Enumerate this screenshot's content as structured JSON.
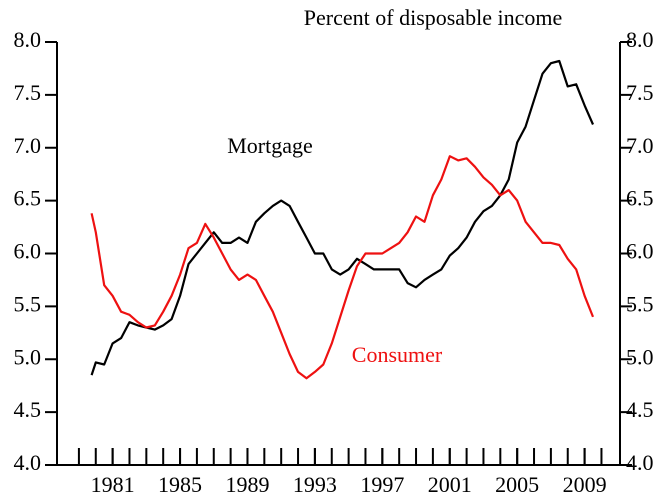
{
  "chart_data": {
    "type": "line",
    "subtitle": "Percent of disposable income",
    "x": [
      1979.75,
      1980,
      1980.5,
      1981,
      1981.5,
      1982,
      1982.5,
      1983,
      1983.5,
      1984,
      1984.5,
      1985,
      1985.5,
      1986,
      1986.5,
      1987,
      1987.5,
      1988,
      1988.5,
      1989,
      1989.5,
      1990,
      1990.5,
      1991,
      1991.5,
      1992,
      1992.5,
      1993,
      1993.5,
      1994,
      1994.5,
      1995,
      1995.5,
      1996,
      1996.5,
      1997,
      1997.5,
      1998,
      1998.5,
      1999,
      1999.5,
      2000,
      2000.5,
      2001,
      2001.5,
      2002,
      2002.5,
      2003,
      2003.5,
      2004,
      2004.5,
      2005,
      2005.5,
      2006,
      2006.5,
      2007,
      2007.5,
      2008,
      2008.5,
      2009,
      2009.5
    ],
    "series": [
      {
        "name": "Mortgage",
        "color": "#000000",
        "values": [
          4.85,
          4.97,
          4.95,
          5.15,
          5.2,
          5.35,
          5.32,
          5.3,
          5.28,
          5.32,
          5.38,
          5.6,
          5.9,
          6.0,
          6.1,
          6.2,
          6.1,
          6.1,
          6.15,
          6.1,
          6.3,
          6.38,
          6.45,
          6.5,
          6.45,
          6.3,
          6.15,
          6.0,
          6.0,
          5.85,
          5.8,
          5.85,
          5.95,
          5.9,
          5.85,
          5.85,
          5.85,
          5.85,
          5.72,
          5.68,
          5.75,
          5.8,
          5.85,
          5.98,
          6.05,
          6.15,
          6.3,
          6.4,
          6.45,
          6.55,
          6.7,
          7.05,
          7.2,
          7.45,
          7.7,
          7.8,
          7.82,
          7.58,
          7.6,
          7.4,
          7.22
        ]
      },
      {
        "name": "Consumer",
        "color": "#ee1111",
        "values": [
          6.38,
          6.2,
          5.7,
          5.6,
          5.45,
          5.42,
          5.35,
          5.3,
          5.32,
          5.45,
          5.6,
          5.8,
          6.05,
          6.1,
          6.28,
          6.15,
          6.0,
          5.85,
          5.75,
          5.8,
          5.75,
          5.6,
          5.45,
          5.25,
          5.05,
          4.88,
          4.82,
          4.88,
          4.95,
          5.15,
          5.4,
          5.65,
          5.88,
          6.0,
          6.0,
          6.0,
          6.05,
          6.1,
          6.2,
          6.35,
          6.3,
          6.55,
          6.7,
          6.92,
          6.88,
          6.9,
          6.82,
          6.72,
          6.65,
          6.55,
          6.6,
          6.5,
          6.3,
          6.2,
          6.1,
          6.1,
          6.08,
          5.95,
          5.85,
          5.6,
          5.4
        ]
      }
    ],
    "xlim": [
      1977.7,
      2011.1
    ],
    "xticks": [
      1981,
      1985,
      1989,
      1993,
      1997,
      2001,
      2005,
      2009
    ],
    "xminor_ticks": [
      1979,
      1980,
      1981,
      1982,
      1983,
      1984,
      1985,
      1986,
      1987,
      1988,
      1989,
      1990,
      1991,
      1992,
      1993,
      1994,
      1995,
      1996,
      1997,
      1998,
      1999,
      2000,
      2001,
      2002,
      2003,
      2004,
      2005,
      2006,
      2007,
      2008,
      2009,
      2010
    ],
    "ylim": [
      4,
      8
    ],
    "yticks": [
      {
        "value": 4,
        "label": "4.0"
      },
      {
        "value": 4.5,
        "label": "4.5"
      },
      {
        "value": 5,
        "label": "5.0"
      },
      {
        "value": 5.5,
        "label": "5.5"
      },
      {
        "value": 6,
        "label": "6.0"
      },
      {
        "value": 6.5,
        "label": "6.5"
      },
      {
        "value": 7,
        "label": "7.0"
      },
      {
        "value": 7.5,
        "label": "7.5"
      },
      {
        "value": 8,
        "label": "8.0"
      }
    ],
    "y2lim": [
      4,
      8
    ],
    "y2ticks": [
      {
        "value": 4,
        "label": "4.0"
      },
      {
        "value": 4.5,
        "label": "4.5"
      },
      {
        "value": 5,
        "label": "5.0"
      },
      {
        "value": 5.5,
        "label": "5.5"
      },
      {
        "value": 6,
        "label": "6.0"
      },
      {
        "value": 6.5,
        "label": "6.5"
      },
      {
        "value": 7,
        "label": "7.0"
      },
      {
        "value": 7.5,
        "label": "7.5"
      },
      {
        "value": 8,
        "label": "8.0"
      }
    ],
    "grid": false
  }
}
